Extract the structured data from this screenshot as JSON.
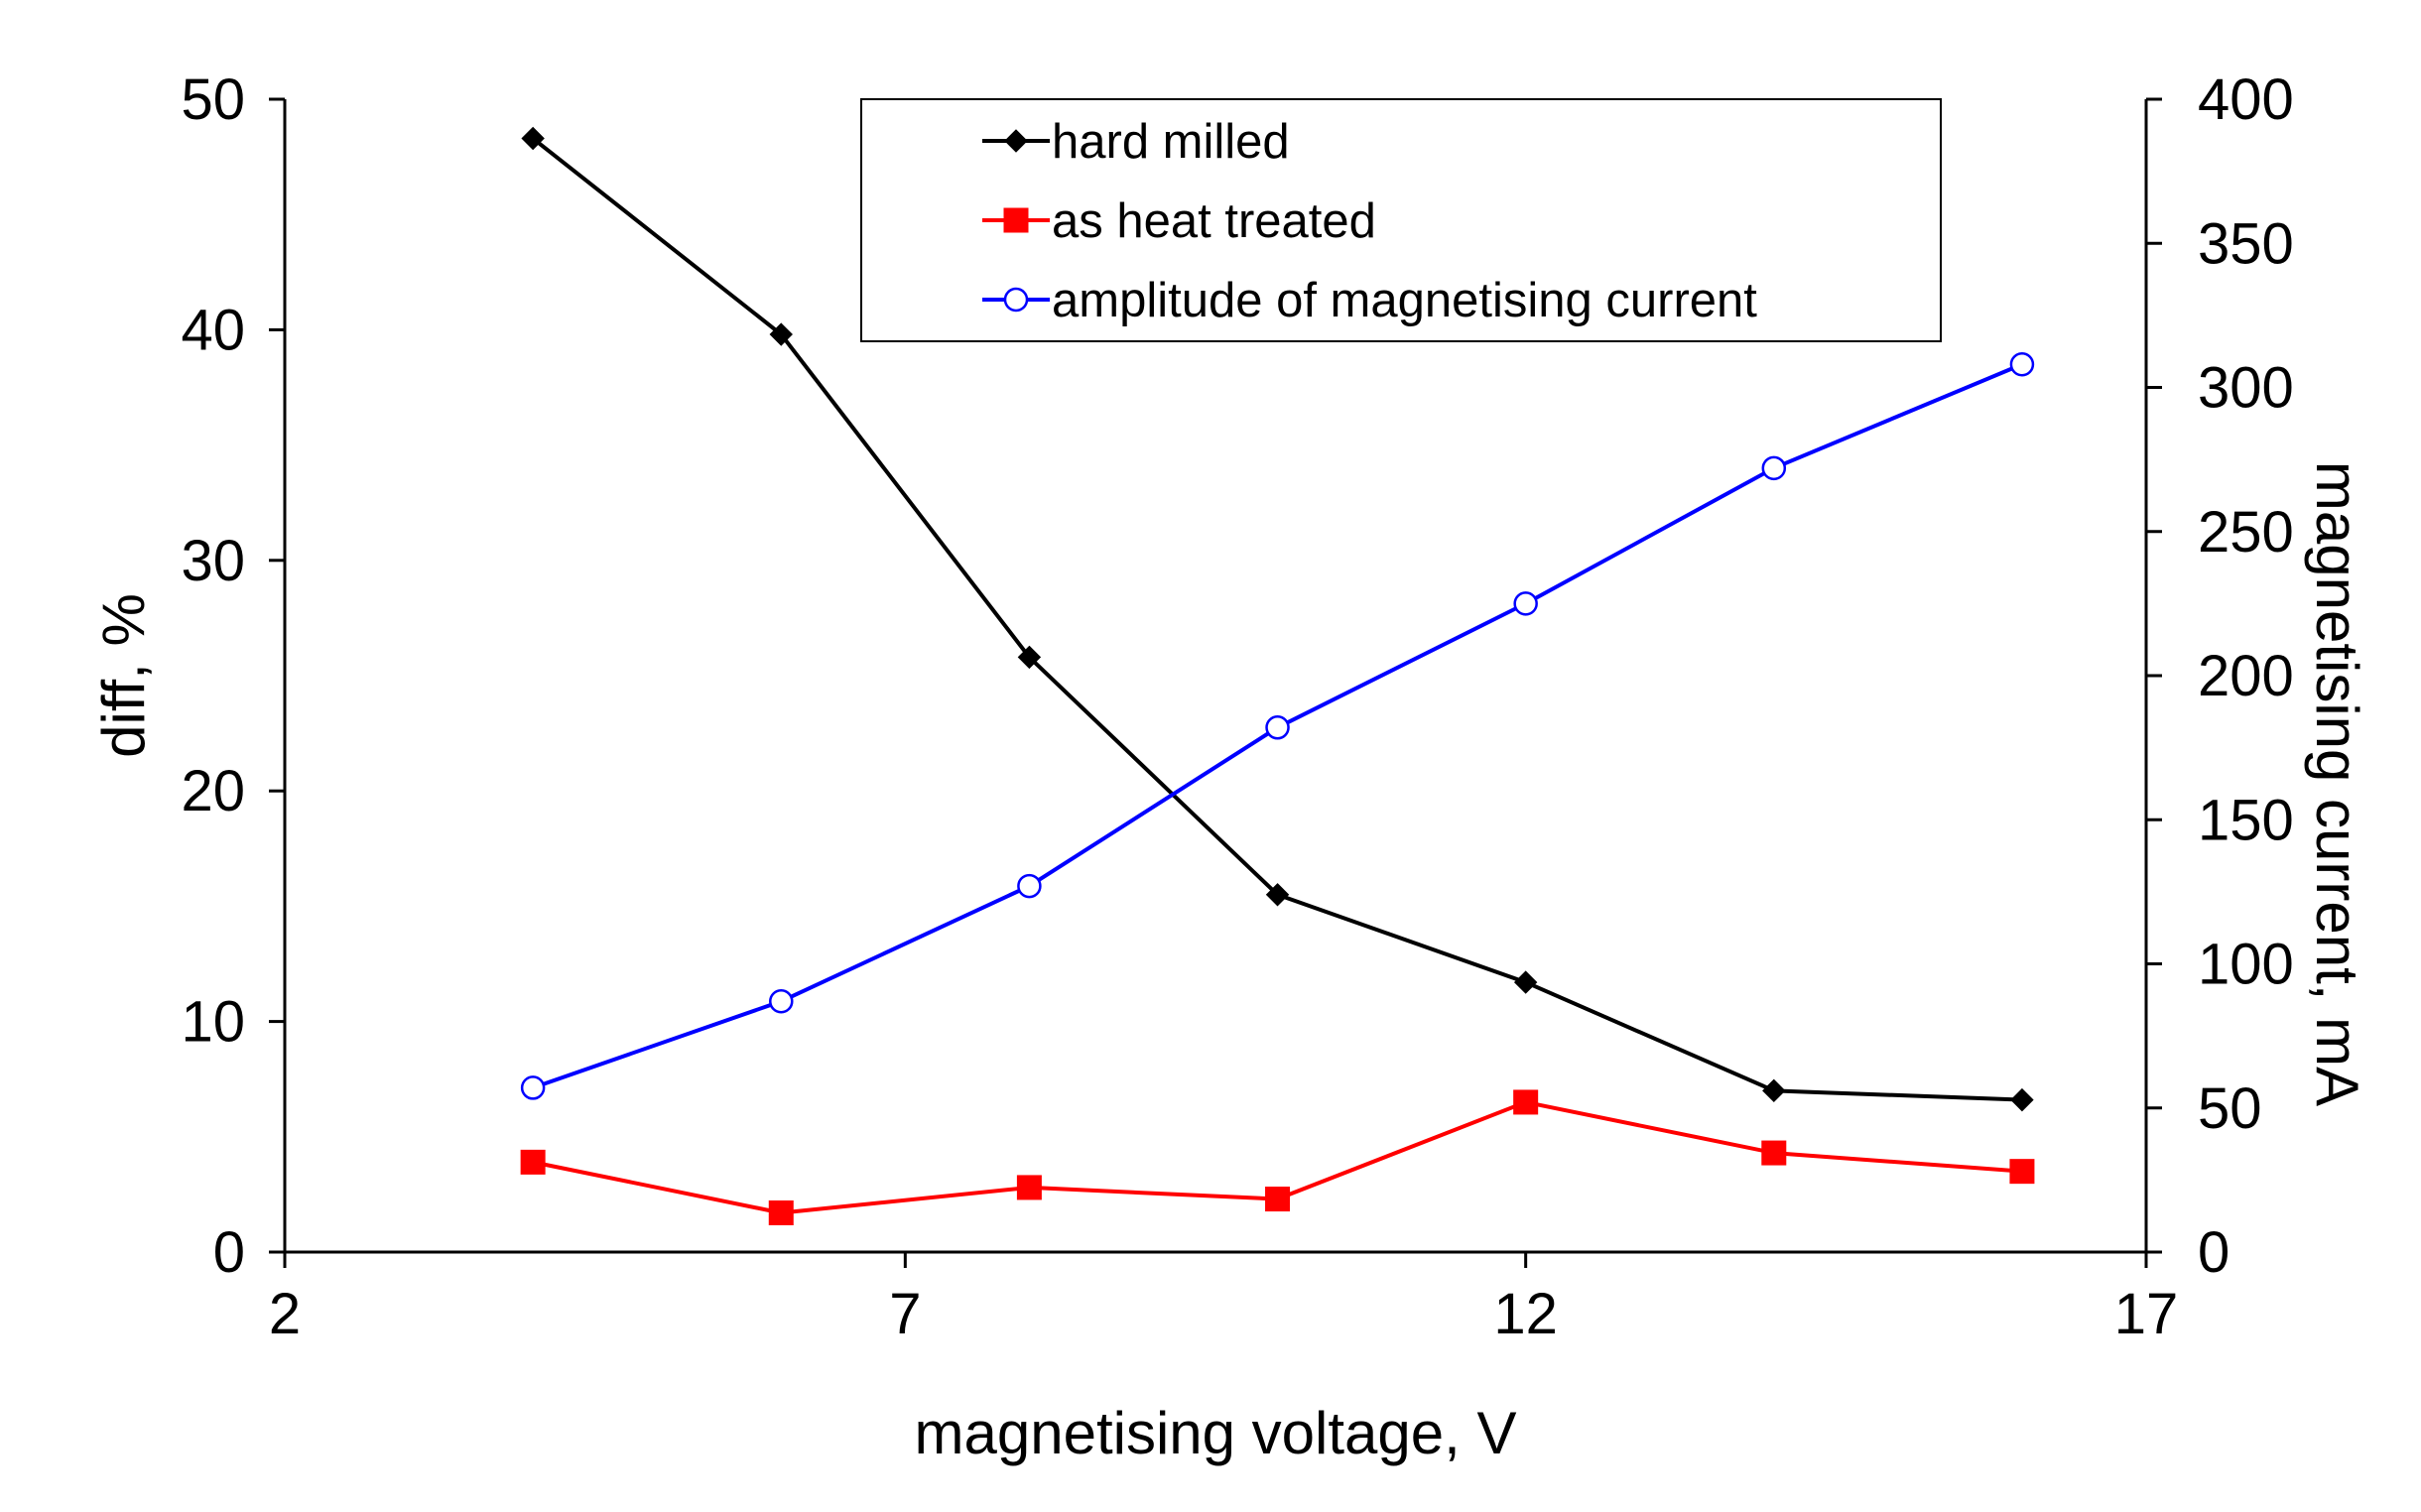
{
  "chart_data": {
    "type": "line",
    "title": "",
    "xlabel": "magnetising voltage, V",
    "ylabel_left": "diff, %",
    "ylabel_right": "magnetising current, mA",
    "xlim": [
      2,
      17
    ],
    "ylim_left": [
      0,
      50
    ],
    "ylim_right": [
      0,
      400
    ],
    "x_ticks": [
      "2",
      "7",
      "12",
      "17"
    ],
    "y_left_ticks": [
      "0",
      "10",
      "20",
      "30",
      "40",
      "50"
    ],
    "y_right_ticks": [
      "0",
      "50",
      "100",
      "150",
      "200",
      "250",
      "300",
      "350",
      "400"
    ],
    "grid": false,
    "legend_position": "top-center",
    "series": [
      {
        "name": "hard milled",
        "axis": "left",
        "color": "#000000",
        "marker": "diamond",
        "x": [
          4,
          6,
          8,
          10,
          12,
          14,
          16
        ],
        "values": [
          48.3,
          39.8,
          25.8,
          15.5,
          11.7,
          7.0,
          6.6
        ]
      },
      {
        "name": "as heat treated",
        "axis": "left",
        "color": "#ff0000",
        "marker": "square",
        "x": [
          4,
          6,
          8,
          10,
          12,
          14,
          16
        ],
        "values": [
          3.9,
          1.7,
          2.8,
          2.3,
          6.5,
          4.3,
          3.5
        ]
      },
      {
        "name": "amplitude of magnetising current",
        "axis": "right",
        "color": "#0000ff",
        "marker": "open-circle",
        "x": [
          4,
          6,
          8,
          10,
          12,
          14,
          16
        ],
        "values": [
          57,
          87,
          127,
          182,
          225,
          272,
          308
        ]
      }
    ]
  }
}
